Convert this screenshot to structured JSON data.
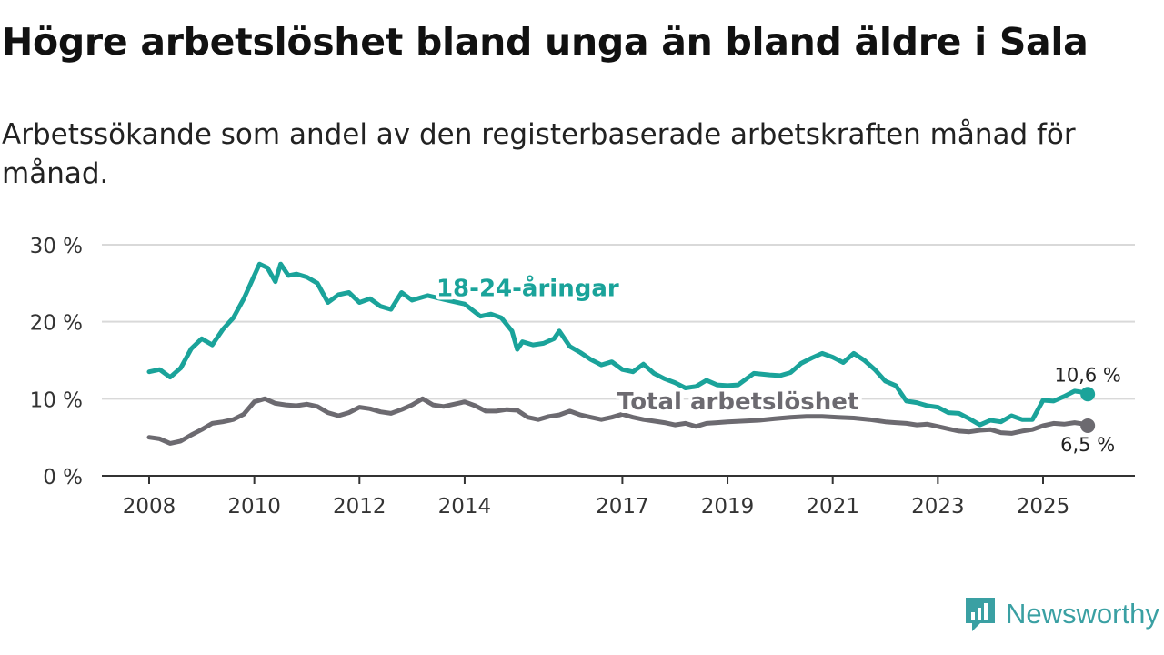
{
  "title": "Högre arbetslöshet bland unga än bland äldre i Sala",
  "subtitle": "Arbetssökande som andel av den registerbaserade arbetskraften månad för månad.",
  "brand": {
    "name": "Newsworthy",
    "color": "#3aa0a3"
  },
  "chart_data": {
    "type": "line",
    "title": "Högre arbetslöshet bland unga än bland äldre i Sala",
    "xlabel": "",
    "ylabel": "",
    "xlim": [
      2008,
      2026.7
    ],
    "ylim": [
      0,
      30
    ],
    "x_ticks": [
      2008,
      2010,
      2012,
      2014,
      2017,
      2019,
      2021,
      2023,
      2025
    ],
    "x_tick_labels": [
      "2008",
      "2010",
      "2012",
      "2014",
      "2017",
      "2019",
      "2021",
      "2023",
      "2025"
    ],
    "y_ticks": [
      0,
      10,
      20,
      30
    ],
    "y_tick_labels": [
      "0 %",
      "10 %",
      "20 %",
      "30 %"
    ],
    "grid": true,
    "series": [
      {
        "name": "18-24-åringar",
        "color": "#1aa39a",
        "end_label": "10,6 %",
        "points": [
          [
            2008.0,
            13.5
          ],
          [
            2008.2,
            13.8
          ],
          [
            2008.4,
            12.8
          ],
          [
            2008.6,
            14.0
          ],
          [
            2008.8,
            16.5
          ],
          [
            2009.0,
            17.8
          ],
          [
            2009.2,
            17.0
          ],
          [
            2009.4,
            19.0
          ],
          [
            2009.6,
            20.5
          ],
          [
            2009.8,
            23.0
          ],
          [
            2010.0,
            26.0
          ],
          [
            2010.1,
            27.5
          ],
          [
            2010.25,
            27.0
          ],
          [
            2010.4,
            25.2
          ],
          [
            2010.5,
            27.5
          ],
          [
            2010.65,
            26.0
          ],
          [
            2010.8,
            26.2
          ],
          [
            2011.0,
            25.8
          ],
          [
            2011.2,
            25.0
          ],
          [
            2011.4,
            22.5
          ],
          [
            2011.6,
            23.5
          ],
          [
            2011.8,
            23.8
          ],
          [
            2012.0,
            22.5
          ],
          [
            2012.2,
            23.0
          ],
          [
            2012.4,
            22.0
          ],
          [
            2012.6,
            21.6
          ],
          [
            2012.8,
            23.8
          ],
          [
            2013.0,
            22.8
          ],
          [
            2013.3,
            23.4
          ],
          [
            2013.6,
            22.9
          ],
          [
            2014.0,
            22.3
          ],
          [
            2014.3,
            20.7
          ],
          [
            2014.5,
            21.0
          ],
          [
            2014.7,
            20.5
          ],
          [
            2014.9,
            18.8
          ],
          [
            2015.0,
            16.4
          ],
          [
            2015.1,
            17.4
          ],
          [
            2015.3,
            17.0
          ],
          [
            2015.5,
            17.2
          ],
          [
            2015.7,
            17.8
          ],
          [
            2015.8,
            18.8
          ],
          [
            2016.0,
            16.8
          ],
          [
            2016.2,
            16.0
          ],
          [
            2016.4,
            15.1
          ],
          [
            2016.6,
            14.4
          ],
          [
            2016.8,
            14.8
          ],
          [
            2017.0,
            13.8
          ],
          [
            2017.2,
            13.5
          ],
          [
            2017.4,
            14.5
          ],
          [
            2017.6,
            13.3
          ],
          [
            2017.8,
            12.6
          ],
          [
            2018.0,
            12.1
          ],
          [
            2018.2,
            11.4
          ],
          [
            2018.4,
            11.6
          ],
          [
            2018.6,
            12.4
          ],
          [
            2018.8,
            11.8
          ],
          [
            2019.0,
            11.7
          ],
          [
            2019.2,
            11.8
          ],
          [
            2019.5,
            13.3
          ],
          [
            2019.8,
            13.1
          ],
          [
            2020.0,
            13.0
          ],
          [
            2020.2,
            13.4
          ],
          [
            2020.4,
            14.6
          ],
          [
            2020.6,
            15.3
          ],
          [
            2020.8,
            15.9
          ],
          [
            2021.0,
            15.4
          ],
          [
            2021.2,
            14.7
          ],
          [
            2021.4,
            15.9
          ],
          [
            2021.6,
            15.0
          ],
          [
            2021.8,
            13.8
          ],
          [
            2022.0,
            12.3
          ],
          [
            2022.2,
            11.7
          ],
          [
            2022.4,
            9.7
          ],
          [
            2022.6,
            9.5
          ],
          [
            2022.8,
            9.1
          ],
          [
            2023.0,
            8.9
          ],
          [
            2023.2,
            8.2
          ],
          [
            2023.4,
            8.1
          ],
          [
            2023.6,
            7.4
          ],
          [
            2023.8,
            6.6
          ],
          [
            2024.0,
            7.2
          ],
          [
            2024.2,
            7.0
          ],
          [
            2024.4,
            7.8
          ],
          [
            2024.6,
            7.3
          ],
          [
            2024.8,
            7.3
          ],
          [
            2025.0,
            9.8
          ],
          [
            2025.2,
            9.7
          ],
          [
            2025.4,
            10.3
          ],
          [
            2025.6,
            11.0
          ],
          [
            2025.8,
            10.8
          ],
          [
            2025.85,
            10.6
          ]
        ]
      },
      {
        "name": "Total arbetslöshet",
        "color": "#6c6a70",
        "end_label": "6,5 %",
        "points": [
          [
            2008.0,
            5.0
          ],
          [
            2008.2,
            4.8
          ],
          [
            2008.4,
            4.2
          ],
          [
            2008.6,
            4.5
          ],
          [
            2008.8,
            5.3
          ],
          [
            2009.0,
            6.0
          ],
          [
            2009.2,
            6.8
          ],
          [
            2009.4,
            7.0
          ],
          [
            2009.6,
            7.3
          ],
          [
            2009.8,
            8.0
          ],
          [
            2010.0,
            9.6
          ],
          [
            2010.2,
            10.0
          ],
          [
            2010.4,
            9.4
          ],
          [
            2010.6,
            9.2
          ],
          [
            2010.8,
            9.1
          ],
          [
            2011.0,
            9.3
          ],
          [
            2011.2,
            9.0
          ],
          [
            2011.4,
            8.2
          ],
          [
            2011.6,
            7.8
          ],
          [
            2011.8,
            8.2
          ],
          [
            2012.0,
            8.9
          ],
          [
            2012.2,
            8.7
          ],
          [
            2012.4,
            8.3
          ],
          [
            2012.6,
            8.1
          ],
          [
            2012.8,
            8.6
          ],
          [
            2013.0,
            9.2
          ],
          [
            2013.2,
            10.0
          ],
          [
            2013.4,
            9.2
          ],
          [
            2013.6,
            9.0
          ],
          [
            2013.8,
            9.3
          ],
          [
            2014.0,
            9.6
          ],
          [
            2014.2,
            9.1
          ],
          [
            2014.4,
            8.4
          ],
          [
            2014.6,
            8.4
          ],
          [
            2014.8,
            8.6
          ],
          [
            2015.0,
            8.5
          ],
          [
            2015.2,
            7.6
          ],
          [
            2015.4,
            7.3
          ],
          [
            2015.6,
            7.7
          ],
          [
            2015.8,
            7.9
          ],
          [
            2016.0,
            8.4
          ],
          [
            2016.2,
            7.9
          ],
          [
            2016.4,
            7.6
          ],
          [
            2016.6,
            7.3
          ],
          [
            2016.8,
            7.6
          ],
          [
            2017.0,
            8.0
          ],
          [
            2017.2,
            7.6
          ],
          [
            2017.4,
            7.3
          ],
          [
            2017.6,
            7.1
          ],
          [
            2017.8,
            6.9
          ],
          [
            2018.0,
            6.6
          ],
          [
            2018.2,
            6.8
          ],
          [
            2018.4,
            6.4
          ],
          [
            2018.6,
            6.8
          ],
          [
            2018.8,
            6.9
          ],
          [
            2019.0,
            7.0
          ],
          [
            2019.3,
            7.1
          ],
          [
            2019.6,
            7.2
          ],
          [
            2019.9,
            7.4
          ],
          [
            2020.2,
            7.6
          ],
          [
            2020.5,
            7.7
          ],
          [
            2020.8,
            7.7
          ],
          [
            2021.1,
            7.6
          ],
          [
            2021.4,
            7.5
          ],
          [
            2021.7,
            7.3
          ],
          [
            2022.0,
            7.0
          ],
          [
            2022.2,
            6.9
          ],
          [
            2022.4,
            6.8
          ],
          [
            2022.6,
            6.6
          ],
          [
            2022.8,
            6.7
          ],
          [
            2023.0,
            6.4
          ],
          [
            2023.2,
            6.1
          ],
          [
            2023.4,
            5.8
          ],
          [
            2023.6,
            5.7
          ],
          [
            2023.8,
            5.9
          ],
          [
            2024.0,
            6.0
          ],
          [
            2024.2,
            5.6
          ],
          [
            2024.4,
            5.5
          ],
          [
            2024.6,
            5.8
          ],
          [
            2024.8,
            6.0
          ],
          [
            2025.0,
            6.5
          ],
          [
            2025.2,
            6.8
          ],
          [
            2025.4,
            6.7
          ],
          [
            2025.6,
            6.9
          ],
          [
            2025.8,
            6.7
          ],
          [
            2025.85,
            6.5
          ]
        ]
      }
    ],
    "inline_labels": [
      {
        "series": "18-24-åringar",
        "text": "18-24-åringar",
        "x": 2015.2,
        "y": 23.3
      },
      {
        "series": "Total arbetslöshet",
        "text": "Total arbetslöshet",
        "x": 2019.2,
        "y": 8.6
      }
    ]
  }
}
